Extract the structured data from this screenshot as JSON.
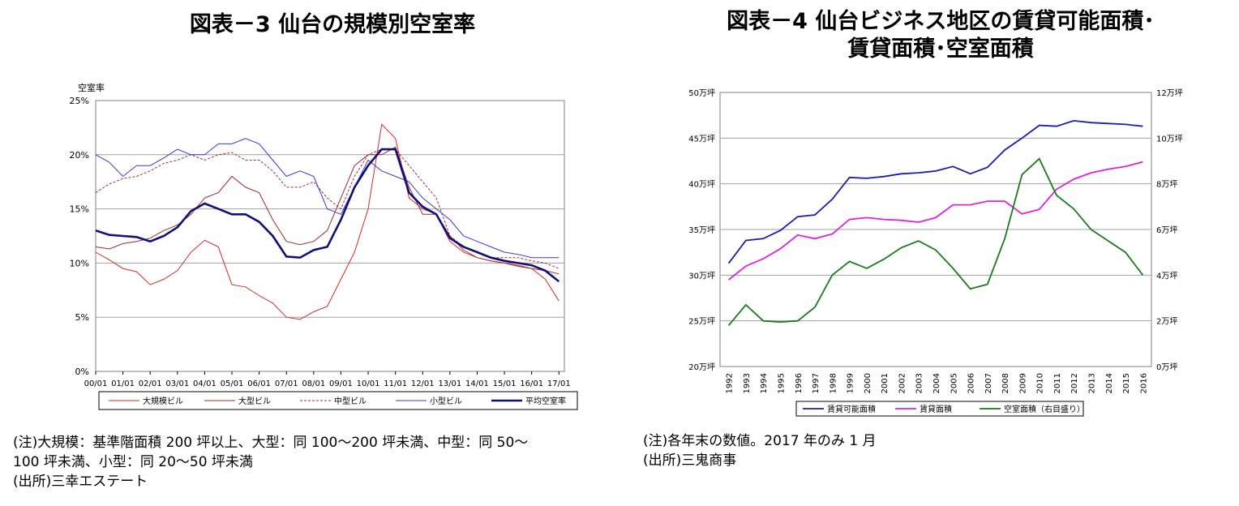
{
  "left": {
    "title": "図表－3  仙台の規模別空室率",
    "notes": [
      "(注)大規模：基準階面積 200 坪以上、大型：同 100～200 坪未満、中型：同 50～",
      "100 坪未満、小型：同 20～50 坪未満",
      "(出所)三幸エステート"
    ]
  },
  "right": {
    "title_lines": [
      "図表－4  仙台ビジネス地区の賃貸可能面積･",
      "賃貸面積･空室面積"
    ],
    "notes": [
      "(注)各年末の数値。2017 年のみ 1 月",
      "(出所)三鬼商事"
    ]
  },
  "chart_data": [
    {
      "type": "line",
      "ylabel": "空室率",
      "ylim": [
        0,
        25
      ],
      "yticks": [
        "0%",
        "5%",
        "10%",
        "15%",
        "20%",
        "25%"
      ],
      "xlim": [
        2000,
        2017.2
      ],
      "categories": [
        "00/01",
        "01/01",
        "02/01",
        "03/01",
        "04/01",
        "05/01",
        "06/01",
        "07/01",
        "08/01",
        "09/01",
        "10/01",
        "11/01",
        "12/01",
        "13/01",
        "14/01",
        "15/01",
        "16/01",
        "17/01"
      ],
      "grid": true,
      "legend_position": "bottom",
      "series": [
        {
          "name": "大規模ビル",
          "color": "#d42a2a",
          "style": "thin",
          "points": [
            [
              2000,
              11
            ],
            [
              2000.5,
              10.3
            ],
            [
              2001,
              9.5
            ],
            [
              2001.5,
              9.2
            ],
            [
              2002,
              8
            ],
            [
              2002.5,
              8.5
            ],
            [
              2003,
              9.3
            ],
            [
              2003.5,
              11
            ],
            [
              2004,
              12.1
            ],
            [
              2004.5,
              11.5
            ],
            [
              2005,
              8
            ],
            [
              2005.5,
              7.8
            ],
            [
              2006,
              7
            ],
            [
              2006.5,
              6.3
            ],
            [
              2007,
              5
            ],
            [
              2007.5,
              4.8
            ],
            [
              2008,
              5.5
            ],
            [
              2008.5,
              6
            ],
            [
              2009,
              8.5
            ],
            [
              2009.5,
              11
            ],
            [
              2010,
              15
            ],
            [
              2010.5,
              22.8
            ],
            [
              2011,
              21.5
            ],
            [
              2011.5,
              16
            ],
            [
              2012,
              15
            ],
            [
              2012.5,
              14.5
            ],
            [
              2013,
              12
            ],
            [
              2013.5,
              11
            ],
            [
              2014,
              10.5
            ],
            [
              2014.5,
              10.2
            ],
            [
              2015,
              10
            ],
            [
              2015.5,
              9.8
            ],
            [
              2016,
              9.5
            ],
            [
              2016.5,
              8.5
            ],
            [
              2017,
              6.5
            ]
          ]
        },
        {
          "name": "大型ビル",
          "color": "#9c2d2d",
          "style": "thin",
          "points": [
            [
              2000,
              11.5
            ],
            [
              2000.5,
              11.3
            ],
            [
              2001,
              11.8
            ],
            [
              2001.5,
              12
            ],
            [
              2002,
              12.3
            ],
            [
              2002.5,
              13
            ],
            [
              2003,
              13.5
            ],
            [
              2003.5,
              14.5
            ],
            [
              2004,
              16
            ],
            [
              2004.5,
              16.5
            ],
            [
              2005,
              18
            ],
            [
              2005.5,
              17
            ],
            [
              2006,
              16.5
            ],
            [
              2006.5,
              14
            ],
            [
              2007,
              12
            ],
            [
              2007.5,
              11.7
            ],
            [
              2008,
              12
            ],
            [
              2008.5,
              13
            ],
            [
              2009,
              16
            ],
            [
              2009.5,
              19
            ],
            [
              2010,
              20
            ],
            [
              2010.5,
              20
            ],
            [
              2011,
              20.7
            ],
            [
              2011.5,
              17
            ],
            [
              2012,
              14.5
            ],
            [
              2012.5,
              14.5
            ],
            [
              2013,
              12.5
            ],
            [
              2013.5,
              11.2
            ],
            [
              2014,
              10.5
            ],
            [
              2014.5,
              10.2
            ],
            [
              2015,
              10
            ],
            [
              2015.5,
              9.7
            ],
            [
              2016,
              9.5
            ],
            [
              2016.5,
              9.3
            ],
            [
              2017,
              9
            ]
          ]
        },
        {
          "name": "中型ビル",
          "color": "#a0302c",
          "style": "dotted",
          "points": [
            [
              2000,
              16.5
            ],
            [
              2000.5,
              17.3
            ],
            [
              2001,
              17.8
            ],
            [
              2001.5,
              18
            ],
            [
              2002,
              18.5
            ],
            [
              2002.5,
              19.2
            ],
            [
              2003,
              19.5
            ],
            [
              2003.5,
              20
            ],
            [
              2004,
              19.5
            ],
            [
              2004.5,
              20
            ],
            [
              2005,
              20.2
            ],
            [
              2005.5,
              19.5
            ],
            [
              2006,
              19.5
            ],
            [
              2006.5,
              18.5
            ],
            [
              2007,
              17
            ],
            [
              2007.5,
              17
            ],
            [
              2008,
              17.5
            ],
            [
              2008.5,
              16
            ],
            [
              2009,
              15
            ],
            [
              2009.5,
              18
            ],
            [
              2010,
              20
            ],
            [
              2010.5,
              20.5
            ],
            [
              2011,
              20.5
            ],
            [
              2011.5,
              19
            ],
            [
              2012,
              17.5
            ],
            [
              2012.5,
              16
            ],
            [
              2013,
              12.5
            ],
            [
              2013.5,
              11.5
            ],
            [
              2014,
              11
            ],
            [
              2014.5,
              10.5
            ],
            [
              2015,
              10.5
            ],
            [
              2015.5,
              10.5
            ],
            [
              2016,
              10.2
            ],
            [
              2016.5,
              10
            ],
            [
              2017,
              9.5
            ]
          ]
        },
        {
          "name": "小型ビル",
          "color": "#3a3ad0",
          "style": "thin",
          "points": [
            [
              2000,
              20
            ],
            [
              2000.5,
              19.3
            ],
            [
              2001,
              18
            ],
            [
              2001.5,
              19
            ],
            [
              2002,
              19
            ],
            [
              2002.5,
              19.7
            ],
            [
              2003,
              20.5
            ],
            [
              2003.5,
              20
            ],
            [
              2004,
              20
            ],
            [
              2004.5,
              21
            ],
            [
              2005,
              21
            ],
            [
              2005.5,
              21.5
            ],
            [
              2006,
              21
            ],
            [
              2006.5,
              19.5
            ],
            [
              2007,
              18
            ],
            [
              2007.5,
              18.5
            ],
            [
              2008,
              18
            ],
            [
              2008.5,
              15
            ],
            [
              2009,
              14.5
            ],
            [
              2009.5,
              17
            ],
            [
              2010,
              19.5
            ],
            [
              2010.5,
              18.5
            ],
            [
              2011,
              18
            ],
            [
              2011.5,
              17.5
            ],
            [
              2012,
              16
            ],
            [
              2012.5,
              15
            ],
            [
              2013,
              14
            ],
            [
              2013.5,
              12.5
            ],
            [
              2014,
              12
            ],
            [
              2014.5,
              11.5
            ],
            [
              2015,
              11
            ],
            [
              2015.5,
              10.8
            ],
            [
              2016,
              10.5
            ],
            [
              2016.5,
              10.5
            ],
            [
              2017,
              10.5
            ]
          ]
        },
        {
          "name": "平均空室率",
          "color": "#10107a",
          "style": "thick",
          "points": [
            [
              2000,
              13
            ],
            [
              2000.5,
              12.6
            ],
            [
              2001,
              12.5
            ],
            [
              2001.5,
              12.4
            ],
            [
              2002,
              12
            ],
            [
              2002.5,
              12.5
            ],
            [
              2003,
              13.3
            ],
            [
              2003.5,
              14.8
            ],
            [
              2004,
              15.5
            ],
            [
              2004.5,
              15
            ],
            [
              2005,
              14.5
            ],
            [
              2005.5,
              14.5
            ],
            [
              2006,
              13.8
            ],
            [
              2006.5,
              12.5
            ],
            [
              2007,
              10.6
            ],
            [
              2007.5,
              10.5
            ],
            [
              2008,
              11.2
            ],
            [
              2008.5,
              11.5
            ],
            [
              2009,
              14
            ],
            [
              2009.5,
              17
            ],
            [
              2010,
              19
            ],
            [
              2010.5,
              20.5
            ],
            [
              2011,
              20.5
            ],
            [
              2011.5,
              16.5
            ],
            [
              2012,
              15.2
            ],
            [
              2012.5,
              14.5
            ],
            [
              2013,
              12.3
            ],
            [
              2013.5,
              11.5
            ],
            [
              2014,
              11
            ],
            [
              2014.5,
              10.5
            ],
            [
              2015,
              10.2
            ],
            [
              2015.5,
              10
            ],
            [
              2016,
              9.8
            ],
            [
              2016.5,
              9.3
            ],
            [
              2017,
              8.3
            ]
          ]
        }
      ]
    },
    {
      "type": "line",
      "categories": [
        "1992",
        "1993",
        "1994",
        "1995",
        "1996",
        "1997",
        "1998",
        "1999",
        "2000",
        "2001",
        "2002",
        "2003",
        "2004",
        "2005",
        "2006",
        "2007",
        "2008",
        "2009",
        "2010",
        "2011",
        "2012",
        "2013",
        "2014",
        "2015",
        "2016"
      ],
      "y_left": {
        "ylim": [
          20,
          50
        ],
        "ticks": [
          "20万坪",
          "25万坪",
          "30万坪",
          "35万坪",
          "40万坪",
          "45万坪",
          "50万坪"
        ]
      },
      "y_right": {
        "ylim": [
          0,
          12
        ],
        "ticks": [
          "0万坪",
          "2万坪",
          "4万坪",
          "6万坪",
          "8万坪",
          "10万坪",
          "12万坪"
        ]
      },
      "grid": true,
      "legend_position": "bottom",
      "series": [
        {
          "name": "賃貸可能面積",
          "color": "#1c1cb0",
          "axis": "left",
          "values": [
            31.3,
            33.8,
            34,
            34.9,
            36.4,
            36.6,
            38.3,
            40.7,
            40.6,
            40.8,
            41.1,
            41.2,
            41.4,
            41.9,
            41.1,
            41.8,
            43.7,
            45,
            46.4,
            46.3,
            46.9,
            46.7,
            46.6,
            46.5,
            46.3
          ]
        },
        {
          "name": "賃貸面積",
          "color": "#e020e0",
          "axis": "left",
          "values": [
            29.5,
            31,
            31.8,
            32.9,
            34.4,
            34,
            34.5,
            36.1,
            36.3,
            36.1,
            36,
            35.8,
            36.3,
            37.7,
            37.7,
            38.1,
            38.1,
            36.7,
            37.2,
            39.4,
            40.5,
            41.2,
            41.6,
            41.9,
            42.4
          ]
        },
        {
          "name": "空室面積（右目盛り）",
          "color": "#1b7a1b",
          "axis": "right",
          "values": [
            1.8,
            2.7,
            2.0,
            1.95,
            2.0,
            2.6,
            4.0,
            4.6,
            4.3,
            4.7,
            5.2,
            5.5,
            5.1,
            4.3,
            3.4,
            3.6,
            5.6,
            8.4,
            9.1,
            7.5,
            6.9,
            6.0,
            5.5,
            5.0,
            4.0
          ]
        }
      ]
    }
  ]
}
